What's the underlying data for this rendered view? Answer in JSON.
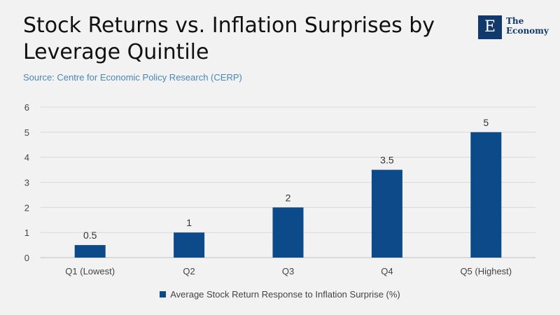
{
  "header": {
    "title": "Stock Returns vs. Inflation Surprises by Leverage Quintile",
    "source": "Source: Centre for Economic Policy Research (CERP)"
  },
  "logo": {
    "letter": "E",
    "text": "The Economy"
  },
  "chart_data": {
    "type": "bar",
    "categories": [
      "Q1 (Lowest)",
      "Q2",
      "Q3",
      "Q4",
      "Q5 (Highest)"
    ],
    "series": [
      {
        "name": "Average Stock Return Response to Inflation Surprise (%)",
        "values": [
          0.5,
          1,
          2,
          3.5,
          5
        ],
        "color": "#0d4a8a"
      }
    ],
    "data_labels": [
      "0.5",
      "1",
      "2",
      "3.5",
      "5"
    ],
    "ylim": [
      0,
      6
    ],
    "yticks": [
      0,
      1,
      2,
      3,
      4,
      5,
      6
    ],
    "grid": true,
    "legend_position": "bottom"
  }
}
